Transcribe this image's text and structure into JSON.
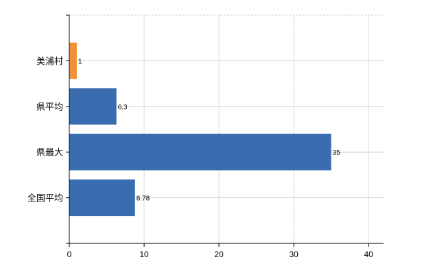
{
  "chart_data": {
    "type": "bar",
    "orientation": "horizontal",
    "title": "",
    "xlabel": "",
    "ylabel": "",
    "categories": [
      "美浦村",
      "県平均",
      "県最大",
      "全国平均"
    ],
    "values": [
      1,
      6.3,
      35,
      8.78
    ],
    "data_labels": [
      "1",
      "6.3",
      "35",
      "8.78"
    ],
    "colors": [
      "#f0913a",
      "#3a6db0",
      "#3a6db0",
      "#3a6db0"
    ],
    "xlim": [
      0,
      42
    ],
    "xticks": [
      0,
      10,
      20,
      30,
      40
    ],
    "xtick_labels": [
      "0",
      "10",
      "20",
      "30",
      "40"
    ],
    "grid": true,
    "grid_color": "#d3d3d3"
  }
}
